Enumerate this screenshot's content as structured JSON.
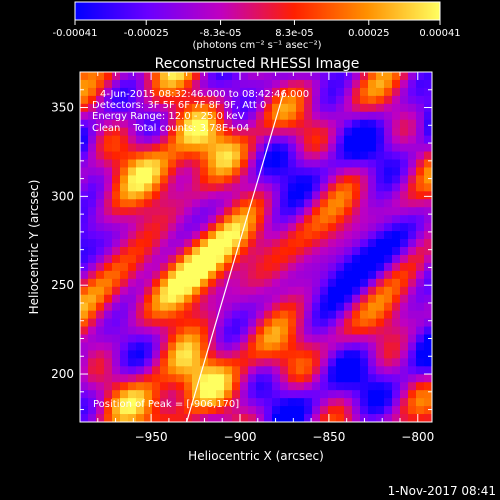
{
  "chart_data": {
    "type": "heatmap",
    "title": "Reconstructed RHESSI Image",
    "colorbar": {
      "ticks": [
        "-0.00041",
        "-0.00025",
        "-8.3e-05",
        "8.3e-05",
        "0.00025",
        "0.00041"
      ],
      "tick_values": [
        -0.00041,
        -0.00025,
        -8.3e-05,
        8.3e-05,
        0.00025,
        0.00041
      ],
      "range": [
        -0.00041,
        0.00041
      ],
      "units": "(photons cm⁻² s⁻¹ asec⁻²)",
      "colors": [
        "#0000ff",
        "#6a00ff",
        "#c000c0",
        "#ff2000",
        "#ff9000",
        "#ffff60"
      ]
    },
    "xlabel": "Heliocentric X (arcsec)",
    "ylabel": "Heliocentric Y (arcsec)",
    "xlim": [
      -990,
      -792
    ],
    "ylim": [
      173,
      370
    ],
    "xticks": [
      -950,
      -900,
      -850,
      -800
    ],
    "xtick_labels": [
      "−950",
      "−900",
      "−850",
      "−800"
    ],
    "yticks": [
      200,
      250,
      300,
      350
    ],
    "ytick_labels": [
      "200",
      "250",
      "300",
      "350"
    ],
    "limb_line": {
      "x": [
        -930,
        -875
      ],
      "y": [
        173,
        360
      ]
    },
    "annotations": [
      "4-Jun-2015 08:32:46.000 to 08:42:46.000",
      "Detectors: 3F 5F 6F 7F 8F 9F, Att 0",
      "Energy Range: 12.0 - 25.0 keV",
      "Clean    Total counts: 3.78E+04"
    ],
    "peak_label": "Position of Peak = [-906,170]",
    "grid": false
  },
  "footer": {
    "timestamp": "1-Nov-2017 08:41"
  }
}
